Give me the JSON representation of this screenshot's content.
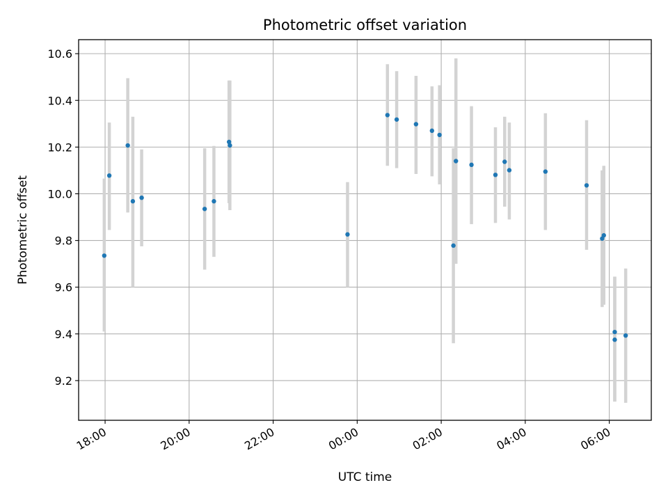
{
  "chart_data": {
    "type": "scatter",
    "title": "Photometric offset variation",
    "xlabel": "UTC time",
    "ylabel": "Photometric offset",
    "x_ticks": [
      {
        "label": "18:00",
        "hours": 18
      },
      {
        "label": "20:00",
        "hours": 20
      },
      {
        "label": "22:00",
        "hours": 22
      },
      {
        "label": "00:00",
        "hours": 24
      },
      {
        "label": "02:00",
        "hours": 26
      },
      {
        "label": "04:00",
        "hours": 28
      },
      {
        "label": "06:00",
        "hours": 30
      }
    ],
    "y_ticks": [
      "9.2",
      "9.4",
      "9.6",
      "9.8",
      "10.0",
      "10.2",
      "10.4",
      "10.6"
    ],
    "xlim_hours": [
      17.37,
      31.0
    ],
    "ylim": [
      9.03,
      10.66
    ],
    "grid": true,
    "colors": {
      "points": "#1f77b4",
      "errorbars": "#d3d3d3",
      "grid": "#b0b0b0"
    },
    "points": [
      {
        "t": "17:59",
        "hours": 17.98,
        "y": 9.735,
        "err_low": 9.41,
        "err_high": 10.065
      },
      {
        "t": "18:06",
        "hours": 18.1,
        "y": 10.078,
        "err_low": 9.845,
        "err_high": 10.305
      },
      {
        "t": "18:32",
        "hours": 18.54,
        "y": 10.207,
        "err_low": 9.92,
        "err_high": 10.495
      },
      {
        "t": "18:40",
        "hours": 18.66,
        "y": 9.968,
        "err_low": 9.6,
        "err_high": 10.33
      },
      {
        "t": "18:52",
        "hours": 18.87,
        "y": 9.983,
        "err_low": 9.775,
        "err_high": 10.19
      },
      {
        "t": "20:22",
        "hours": 20.37,
        "y": 9.935,
        "err_low": 9.675,
        "err_high": 10.195
      },
      {
        "t": "20:35",
        "hours": 20.59,
        "y": 9.968,
        "err_low": 9.73,
        "err_high": 10.205
      },
      {
        "t": "20:57",
        "hours": 20.95,
        "y": 10.222,
        "err_low": 9.96,
        "err_high": 10.485
      },
      {
        "t": "20:58",
        "hours": 20.97,
        "y": 10.207,
        "err_low": 9.93,
        "err_high": 10.485
      },
      {
        "t": "23:46",
        "hours": 23.77,
        "y": 9.826,
        "err_low": 9.6,
        "err_high": 10.05
      },
      {
        "t": "00:43",
        "hours": 24.72,
        "y": 10.337,
        "err_low": 10.12,
        "err_high": 10.555
      },
      {
        "t": "00:56",
        "hours": 24.94,
        "y": 10.318,
        "err_low": 10.11,
        "err_high": 10.525
      },
      {
        "t": "01:24",
        "hours": 25.4,
        "y": 10.298,
        "err_low": 10.085,
        "err_high": 10.505
      },
      {
        "t": "01:47",
        "hours": 25.78,
        "y": 10.27,
        "err_low": 10.075,
        "err_high": 10.46
      },
      {
        "t": "01:58",
        "hours": 25.96,
        "y": 10.252,
        "err_low": 10.04,
        "err_high": 10.465
      },
      {
        "t": "02:17",
        "hours": 26.29,
        "y": 9.778,
        "err_low": 9.36,
        "err_high": 10.195
      },
      {
        "t": "02:21",
        "hours": 26.35,
        "y": 10.14,
        "err_low": 9.7,
        "err_high": 10.58
      },
      {
        "t": "02:43",
        "hours": 26.72,
        "y": 10.124,
        "err_low": 9.87,
        "err_high": 10.375
      },
      {
        "t": "03:17",
        "hours": 27.29,
        "y": 10.081,
        "err_low": 9.875,
        "err_high": 10.285
      },
      {
        "t": "03:31",
        "hours": 27.51,
        "y": 10.137,
        "err_low": 9.945,
        "err_high": 10.33
      },
      {
        "t": "03:37",
        "hours": 27.62,
        "y": 10.101,
        "err_low": 9.89,
        "err_high": 10.305
      },
      {
        "t": "04:29",
        "hours": 28.48,
        "y": 10.095,
        "err_low": 9.845,
        "err_high": 10.345
      },
      {
        "t": "05:27",
        "hours": 29.46,
        "y": 10.036,
        "err_low": 9.76,
        "err_high": 10.315
      },
      {
        "t": "05:50",
        "hours": 29.83,
        "y": 9.808,
        "err_low": 9.515,
        "err_high": 10.1
      },
      {
        "t": "05:52",
        "hours": 29.87,
        "y": 9.822,
        "err_low": 9.525,
        "err_high": 10.12
      },
      {
        "t": "06:08",
        "hours": 30.13,
        "y": 9.408,
        "err_low": 9.11,
        "err_high": 9.645
      },
      {
        "t": "06:08",
        "hours": 30.13,
        "y": 9.375,
        "err_low": 9.11,
        "err_high": 9.645
      },
      {
        "t": "06:24",
        "hours": 30.39,
        "y": 9.393,
        "err_low": 9.105,
        "err_high": 9.68
      }
    ]
  }
}
